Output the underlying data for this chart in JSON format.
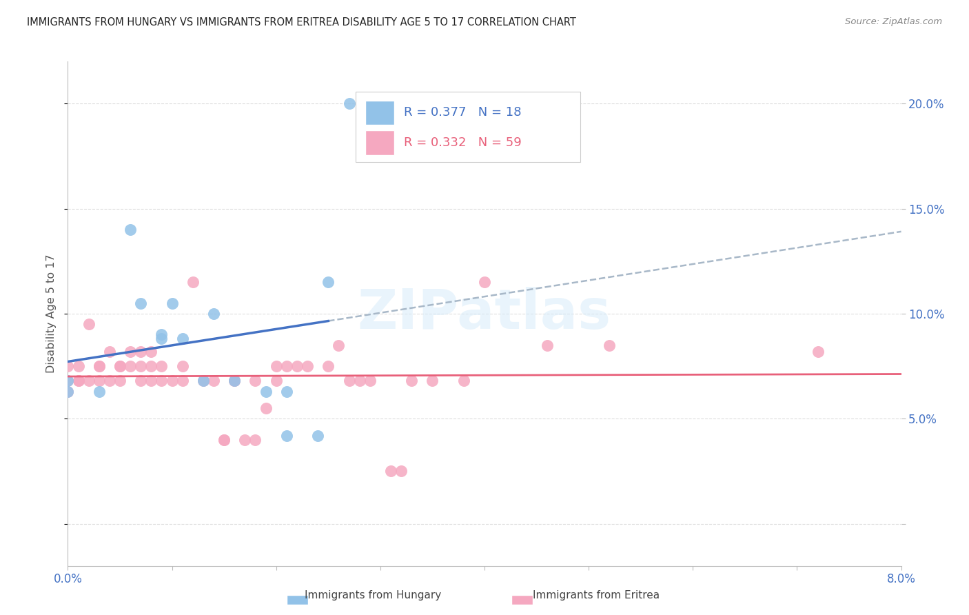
{
  "title": "IMMIGRANTS FROM HUNGARY VS IMMIGRANTS FROM ERITREA DISABILITY AGE 5 TO 17 CORRELATION CHART",
  "source": "Source: ZipAtlas.com",
  "ylabel": "Disability Age 5 to 17",
  "xlim": [
    0.0,
    0.08
  ],
  "ylim": [
    -0.02,
    0.22
  ],
  "xticks": [
    0.0,
    0.01,
    0.02,
    0.03,
    0.04,
    0.05,
    0.06,
    0.07,
    0.08
  ],
  "xticklabels": [
    "0.0%",
    "",
    "",
    "",
    "",
    "",
    "",
    "",
    "8.0%"
  ],
  "yticks": [
    0.0,
    0.05,
    0.1,
    0.15,
    0.2
  ],
  "yticklabels_right": [
    "",
    "5.0%",
    "10.0%",
    "15.0%",
    "20.0%"
  ],
  "hungary_scatter_color": "#92C2E8",
  "eritrea_scatter_color": "#F5A8C0",
  "hungary_line_color": "#4472C4",
  "eritrea_line_color": "#E8607A",
  "dashed_line_color": "#A8B8C8",
  "legend_hungary_color": "#4472C4",
  "legend_eritrea_color": "#E8607A",
  "watermark_text": "ZIPatlas",
  "watermark_color": "#D8ECFA",
  "grid_color": "#DDDDDD",
  "axis_tick_color": "#4472C4",
  "bg_color": "#FFFFFF",
  "hungary_x": [
    0.0,
    0.0,
    0.003,
    0.006,
    0.007,
    0.009,
    0.009,
    0.01,
    0.011,
    0.013,
    0.014,
    0.016,
    0.019,
    0.021,
    0.021,
    0.024,
    0.025,
    0.027
  ],
  "hungary_y": [
    0.068,
    0.063,
    0.063,
    0.14,
    0.105,
    0.09,
    0.088,
    0.105,
    0.088,
    0.068,
    0.1,
    0.068,
    0.063,
    0.063,
    0.042,
    0.042,
    0.115,
    0.2
  ],
  "eritrea_x": [
    0.0,
    0.0,
    0.0,
    0.001,
    0.001,
    0.001,
    0.002,
    0.002,
    0.003,
    0.003,
    0.003,
    0.004,
    0.004,
    0.005,
    0.005,
    0.005,
    0.006,
    0.006,
    0.007,
    0.007,
    0.007,
    0.008,
    0.008,
    0.008,
    0.009,
    0.009,
    0.01,
    0.011,
    0.011,
    0.012,
    0.013,
    0.014,
    0.015,
    0.015,
    0.016,
    0.016,
    0.017,
    0.018,
    0.018,
    0.019,
    0.02,
    0.02,
    0.021,
    0.022,
    0.023,
    0.025,
    0.026,
    0.027,
    0.028,
    0.029,
    0.031,
    0.032,
    0.033,
    0.035,
    0.038,
    0.04,
    0.046,
    0.052,
    0.072
  ],
  "eritrea_y": [
    0.068,
    0.063,
    0.075,
    0.068,
    0.068,
    0.075,
    0.095,
    0.068,
    0.075,
    0.075,
    0.068,
    0.068,
    0.082,
    0.075,
    0.075,
    0.068,
    0.075,
    0.082,
    0.082,
    0.075,
    0.068,
    0.075,
    0.082,
    0.068,
    0.075,
    0.068,
    0.068,
    0.075,
    0.068,
    0.115,
    0.068,
    0.068,
    0.04,
    0.04,
    0.068,
    0.068,
    0.04,
    0.068,
    0.04,
    0.055,
    0.075,
    0.068,
    0.075,
    0.075,
    0.075,
    0.075,
    0.085,
    0.068,
    0.068,
    0.068,
    0.025,
    0.025,
    0.068,
    0.068,
    0.068,
    0.115,
    0.085,
    0.085,
    0.082
  ],
  "hungary_R": "0.377",
  "hungary_N": "18",
  "eritrea_R": "0.332",
  "eritrea_N": "59"
}
